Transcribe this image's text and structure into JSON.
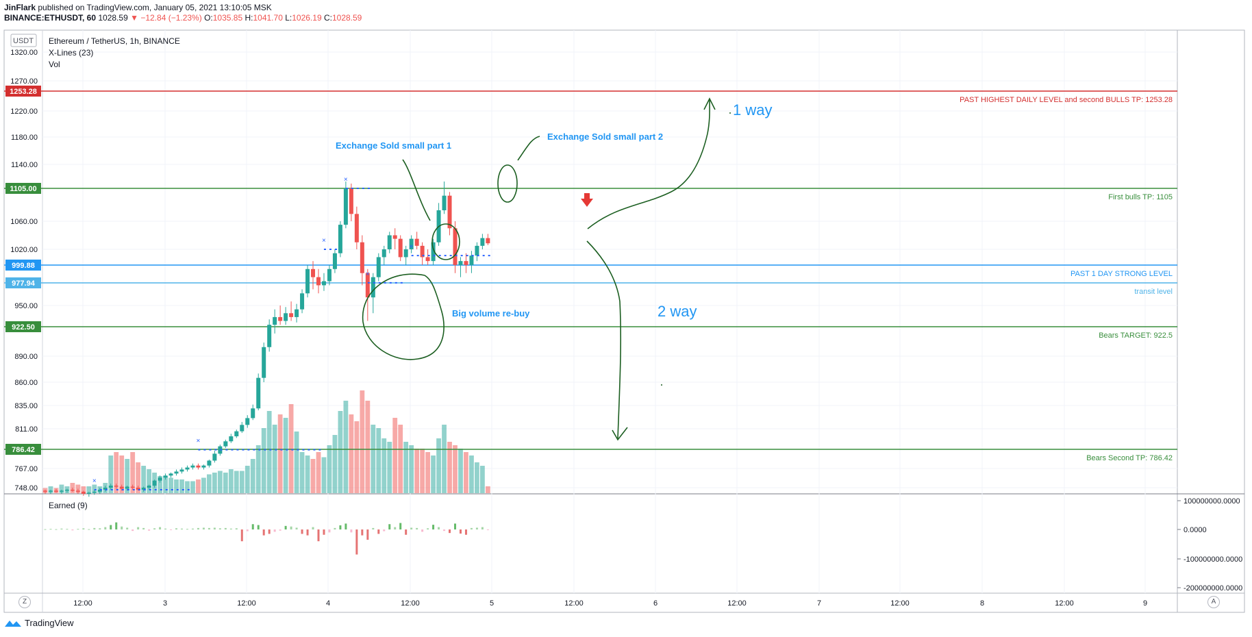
{
  "header": {
    "author": "JinFlark",
    "published": "published on TradingView.com, January 05, 2021 13:10:05 MSK",
    "symbol": "BINANCE:ETHUSDT, 60",
    "last": "1028.59",
    "change": "−12.84 (−1.23%)",
    "o_label": "O:",
    "o": "1035.85",
    "h_label": "H:",
    "h": "1041.70",
    "l_label": "L:",
    "l": "1026.19",
    "c_label": "C:",
    "c": "1028.59"
  },
  "legend": {
    "title": "Ethereum / TetherUS, 1h, BINANCE",
    "indicator1": "X-Lines (23)",
    "indicator2": "Vol",
    "pane2_title": "Earned (9)",
    "currency": "USDT"
  },
  "buttons": {
    "zoom": "Z",
    "auto": "A"
  },
  "brand": {
    "name": "TradingView"
  },
  "colors": {
    "up": "#26a69a",
    "down": "#ef5350",
    "green_line": "#388e3c",
    "blue_line": "#2196f3",
    "red_line": "#d32f2f",
    "annotation_blue": "#2196f3",
    "drawing_green": "#1b5e20"
  },
  "chart_data": {
    "type": "candlestick",
    "price_axis_ticks": [
      "1320.00",
      "1270.00",
      "1220.00",
      "1180.00",
      "1140.00",
      "1060.00",
      "1020.00",
      "950.00",
      "890.00",
      "860.00",
      "835.00",
      "811.00",
      "767.00",
      "748.00"
    ],
    "time_axis_ticks": [
      "12:00",
      "3",
      "12:00",
      "4",
      "12:00",
      "5",
      "12:00",
      "6",
      "12:00",
      "7",
      "12:00",
      "8",
      "12:00",
      "9"
    ],
    "earned_axis_ticks": [
      "100000000.0000",
      "0.0000",
      "-100000000.0000",
      "-200000000.0000"
    ],
    "levels": [
      {
        "value": 1253.28,
        "label": "1253.28",
        "text": "PAST HIGHEST DAILY LEVEL and second BULLS TP: 1253.28",
        "color": "#d32f2f"
      },
      {
        "value": 1105,
        "label": "1105.00",
        "text": "First bulls TP: 1105",
        "color": "#388e3c"
      },
      {
        "value": 999.88,
        "label": "999.88",
        "text": "PAST 1 DAY STRONG LEVEL",
        "color": "#2196f3"
      },
      {
        "value": 977.94,
        "label": "977.94",
        "text": "transit level",
        "color": "#4fb3e8"
      },
      {
        "value": 922.5,
        "label": "922.50",
        "text": "Bears TARGET: 922.5",
        "color": "#388e3c"
      },
      {
        "value": 786.42,
        "label": "786.42",
        "text": "Bears Second TP: 786.42",
        "color": "#388e3c"
      }
    ],
    "annotations": [
      {
        "text": "Exchange Sold small part 1"
      },
      {
        "text": "Exchange Sold small part 2"
      },
      {
        "text": "Big volume re-buy"
      },
      {
        "text": "1 way"
      },
      {
        "text": "2 way"
      }
    ],
    "candles": [
      [
        745,
        746,
        742,
        744
      ],
      [
        744,
        746,
        742,
        745
      ],
      [
        745,
        747,
        743,
        744
      ],
      [
        744,
        746,
        742,
        745
      ],
      [
        745,
        747,
        743,
        746
      ],
      [
        746,
        748,
        744,
        745
      ],
      [
        745,
        747,
        742,
        744
      ],
      [
        744,
        745,
        740,
        742
      ],
      [
        742,
        744,
        739,
        743
      ],
      [
        743,
        746,
        741,
        744
      ],
      [
        744,
        748,
        742,
        746
      ],
      [
        746,
        750,
        744,
        748
      ],
      [
        748,
        752,
        746,
        750
      ],
      [
        750,
        752,
        747,
        749
      ],
      [
        749,
        751,
        745,
        747
      ],
      [
        747,
        750,
        745,
        749
      ],
      [
        749,
        751,
        746,
        748
      ],
      [
        748,
        750,
        745,
        746
      ],
      [
        746,
        749,
        744,
        748
      ],
      [
        748,
        751,
        746,
        750
      ],
      [
        750,
        756,
        748,
        755
      ],
      [
        755,
        760,
        753,
        758
      ],
      [
        758,
        762,
        756,
        760
      ],
      [
        760,
        763,
        758,
        762
      ],
      [
        762,
        766,
        760,
        764
      ],
      [
        764,
        768,
        762,
        766
      ],
      [
        766,
        770,
        764,
        768
      ],
      [
        768,
        772,
        766,
        770
      ],
      [
        770,
        772,
        766,
        768
      ],
      [
        768,
        771,
        766,
        770
      ],
      [
        770,
        776,
        768,
        775
      ],
      [
        775,
        785,
        773,
        782
      ],
      [
        782,
        792,
        780,
        790
      ],
      [
        790,
        798,
        788,
        796
      ],
      [
        796,
        805,
        794,
        802
      ],
      [
        802,
        810,
        800,
        808
      ],
      [
        808,
        818,
        806,
        815
      ],
      [
        815,
        825,
        812,
        822
      ],
      [
        822,
        836,
        820,
        832
      ],
      [
        832,
        870,
        830,
        865
      ],
      [
        865,
        905,
        860,
        900
      ],
      [
        900,
        932,
        895,
        925
      ],
      [
        925,
        945,
        915,
        935
      ],
      [
        935,
        950,
        925,
        930
      ],
      [
        930,
        948,
        925,
        940
      ],
      [
        940,
        955,
        930,
        935
      ],
      [
        935,
        952,
        928,
        945
      ],
      [
        945,
        970,
        940,
        965
      ],
      [
        965,
        1000,
        960,
        995
      ],
      [
        995,
        1005,
        970,
        985
      ],
      [
        985,
        995,
        965,
        975
      ],
      [
        975,
        990,
        968,
        980
      ],
      [
        980,
        1000,
        975,
        995
      ],
      [
        995,
        1020,
        990,
        1015
      ],
      [
        1015,
        1060,
        1010,
        1055
      ],
      [
        1055,
        1115,
        1050,
        1105
      ],
      [
        1105,
        1112,
        1060,
        1070
      ],
      [
        1070,
        1080,
        1020,
        1030
      ],
      [
        1030,
        1040,
        975,
        990
      ],
      [
        990,
        995,
        930,
        960
      ],
      [
        960,
        990,
        940,
        985
      ],
      [
        985,
        1015,
        980,
        1010
      ],
      [
        1010,
        1025,
        1000,
        1020
      ],
      [
        1020,
        1045,
        1015,
        1040
      ],
      [
        1040,
        1050,
        1020,
        1035
      ],
      [
        1035,
        1040,
        1005,
        1010
      ],
      [
        1010,
        1025,
        1000,
        1020
      ],
      [
        1020,
        1040,
        1015,
        1035
      ],
      [
        1035,
        1045,
        1020,
        1025
      ],
      [
        1025,
        1030,
        1000,
        1010
      ],
      [
        1010,
        1020,
        1000,
        1005
      ],
      [
        1005,
        1035,
        1000,
        1030
      ],
      [
        1030,
        1085,
        1025,
        1075
      ],
      [
        1075,
        1115,
        1070,
        1095
      ],
      [
        1095,
        1100,
        1040,
        1050
      ],
      [
        1050,
        1060,
        990,
        1000
      ],
      [
        1000,
        1010,
        985,
        1005
      ],
      [
        1005,
        1015,
        990,
        1000
      ],
      [
        1000,
        1018,
        990,
        1012
      ],
      [
        1012,
        1030,
        1005,
        1025
      ],
      [
        1025,
        1042,
        1020,
        1036
      ],
      [
        1036,
        1042,
        1026,
        1028.59
      ]
    ],
    "volumes": [
      3,
      4,
      3,
      5,
      4,
      6,
      5,
      4,
      4,
      5,
      4,
      6,
      22,
      24,
      22,
      20,
      24,
      18,
      16,
      14,
      12,
      10,
      10,
      9,
      8,
      8,
      7,
      7,
      8,
      9,
      11,
      12,
      13,
      12,
      14,
      13,
      13,
      16,
      20,
      28,
      38,
      48,
      40,
      46,
      44,
      52,
      36,
      24,
      22,
      20,
      24,
      21,
      28,
      34,
      48,
      54,
      46,
      42,
      60,
      54,
      40,
      38,
      32,
      30,
      44,
      40,
      30,
      28,
      26,
      26,
      24,
      22,
      32,
      40,
      30,
      28,
      26,
      24,
      22,
      18,
      16,
      4
    ],
    "earned": [
      1,
      2,
      1,
      3,
      2,
      -3,
      2,
      4,
      1,
      5,
      4,
      8,
      15,
      24,
      10,
      6,
      -5,
      8,
      5,
      -4,
      4,
      8,
      3,
      -2,
      4,
      3,
      2,
      3,
      5,
      6,
      5,
      6,
      4,
      5,
      3,
      4,
      -40,
      -6,
      18,
      15,
      -20,
      -15,
      -8,
      -4,
      12,
      10,
      6,
      -15,
      -20,
      8,
      -40,
      -18,
      -10,
      5,
      14,
      20,
      -10,
      -85,
      -20,
      -35,
      5,
      -15,
      -6,
      18,
      8,
      22,
      -18,
      6,
      5,
      -8,
      4,
      16,
      8,
      -5,
      -12,
      20,
      -14,
      -18,
      5,
      6,
      8,
      -2
    ],
    "price_range": [
      745,
      1330
    ]
  }
}
